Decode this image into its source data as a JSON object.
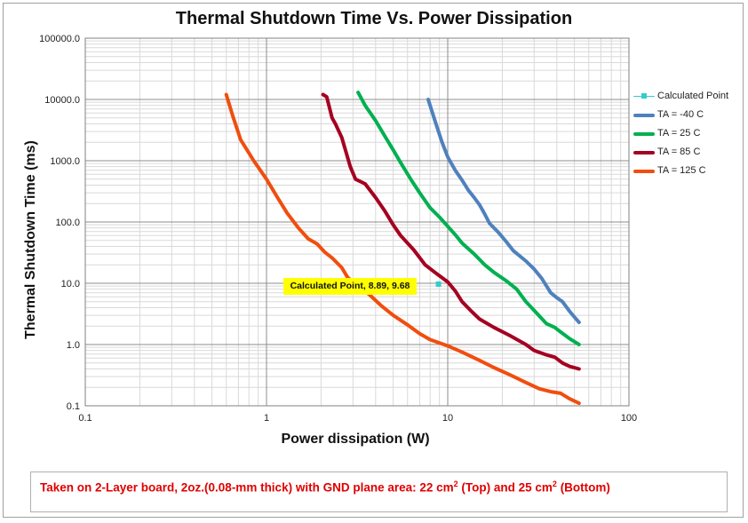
{
  "chart_data": {
    "type": "line",
    "title": "Thermal Shutdown Time Vs. Power Dissipation",
    "xlabel": "Power dissipation (W)",
    "ylabel": "Thermal Shutdown Time (ms)",
    "xscale": "log",
    "yscale": "log",
    "xlim": [
      0.1,
      100
    ],
    "ylim": [
      0.1,
      100000
    ],
    "x_tick_labels": [
      "0.1",
      "1",
      "10",
      "100"
    ],
    "y_tick_labels": [
      "0.1",
      "1.0",
      "10.0",
      "100.0",
      "1000.0",
      "10000.0",
      "100000.0"
    ],
    "grid": true,
    "legend_position": "right",
    "series": [
      {
        "name": "Calculated Point",
        "color": "#33cccc",
        "marker": "square",
        "points": [
          [
            8.89,
            9.68
          ]
        ]
      },
      {
        "name": "TA = -40 C",
        "color": "#4f81bd",
        "points": [
          [
            7.8,
            10000
          ],
          [
            8.5,
            4500
          ],
          [
            9.3,
            2000
          ],
          [
            10,
            1150
          ],
          [
            11,
            700
          ],
          [
            12,
            480
          ],
          [
            13,
            330
          ],
          [
            14,
            250
          ],
          [
            15,
            190
          ],
          [
            16,
            135
          ],
          [
            17,
            95
          ],
          [
            19,
            68
          ],
          [
            21,
            48
          ],
          [
            23,
            34
          ],
          [
            27,
            23
          ],
          [
            30,
            17
          ],
          [
            33,
            12
          ],
          [
            37,
            7
          ],
          [
            40,
            5.8
          ],
          [
            43,
            5
          ],
          [
            47,
            3.5
          ],
          [
            50,
            2.8
          ],
          [
            53,
            2.3
          ]
        ]
      },
      {
        "name": "TA = 25 C",
        "color": "#00b050",
        "points": [
          [
            3.2,
            13000
          ],
          [
            3.5,
            8000
          ],
          [
            4,
            4500
          ],
          [
            4.5,
            2500
          ],
          [
            5,
            1500
          ],
          [
            5.6,
            850
          ],
          [
            6.3,
            480
          ],
          [
            7,
            300
          ],
          [
            8,
            170
          ],
          [
            9,
            120
          ],
          [
            10,
            85
          ],
          [
            11,
            62
          ],
          [
            12,
            45
          ],
          [
            14,
            30
          ],
          [
            16,
            20
          ],
          [
            18,
            15
          ],
          [
            21,
            11
          ],
          [
            24,
            8
          ],
          [
            27,
            5
          ],
          [
            30,
            3.6
          ],
          [
            35,
            2.2
          ],
          [
            39,
            1.9
          ],
          [
            42,
            1.6
          ],
          [
            47,
            1.25
          ],
          [
            53,
            1.0
          ]
        ]
      },
      {
        "name": "TA = 85 C",
        "color": "#a50021",
        "points": [
          [
            2.05,
            12000
          ],
          [
            2.15,
            11000
          ],
          [
            2.3,
            5000
          ],
          [
            2.4,
            4000
          ],
          [
            2.6,
            2400
          ],
          [
            2.9,
            800
          ],
          [
            3.1,
            500
          ],
          [
            3.5,
            420
          ],
          [
            4,
            250
          ],
          [
            4.5,
            150
          ],
          [
            5,
            90
          ],
          [
            5.5,
            60
          ],
          [
            6.5,
            35
          ],
          [
            7.5,
            20
          ],
          [
            8.5,
            15
          ],
          [
            10,
            10.5
          ],
          [
            11,
            7.5
          ],
          [
            12,
            5
          ],
          [
            13.5,
            3.5
          ],
          [
            15,
            2.6
          ],
          [
            18,
            1.9
          ],
          [
            22,
            1.4
          ],
          [
            27,
            1
          ],
          [
            30,
            0.8
          ],
          [
            35,
            0.68
          ],
          [
            39,
            0.62
          ],
          [
            43,
            0.5
          ],
          [
            47,
            0.44
          ],
          [
            53,
            0.4
          ]
        ]
      },
      {
        "name": "TA = 125 C",
        "color": "#f04e0e",
        "points": [
          [
            0.6,
            12000
          ],
          [
            0.65,
            5500
          ],
          [
            0.72,
            2200
          ],
          [
            0.76,
            1700
          ],
          [
            0.85,
            1000
          ],
          [
            1,
            500
          ],
          [
            1.15,
            250
          ],
          [
            1.3,
            140
          ],
          [
            1.5,
            80
          ],
          [
            1.7,
            53
          ],
          [
            1.9,
            44
          ],
          [
            2.1,
            32
          ],
          [
            2.3,
            26
          ],
          [
            2.6,
            18
          ],
          [
            2.8,
            12.5
          ],
          [
            3.2,
            9
          ],
          [
            3.7,
            6.5
          ],
          [
            4.3,
            4.3
          ],
          [
            5,
            3
          ],
          [
            6,
            2.1
          ],
          [
            7,
            1.5
          ],
          [
            8,
            1.2
          ],
          [
            10,
            0.95
          ],
          [
            12,
            0.75
          ],
          [
            15,
            0.55
          ],
          [
            18,
            0.42
          ],
          [
            22,
            0.32
          ],
          [
            27,
            0.24
          ],
          [
            32,
            0.19
          ],
          [
            37,
            0.17
          ],
          [
            42,
            0.16
          ],
          [
            47,
            0.13
          ],
          [
            53,
            0.11
          ]
        ]
      }
    ],
    "annotations": [
      {
        "text": "Calculated Point, 8.89, 9.68",
        "x": 8.89,
        "y": 9.68,
        "background": "#ffff00"
      }
    ]
  },
  "note": {
    "prefix": "Taken on 2-Layer board, 2oz.(0.08-mm thick) with GND plane area: 22 cm",
    "sup1": "2",
    "mid": " (Top) and 25 cm",
    "sup2": "2",
    "suffix": " (Bottom)"
  }
}
